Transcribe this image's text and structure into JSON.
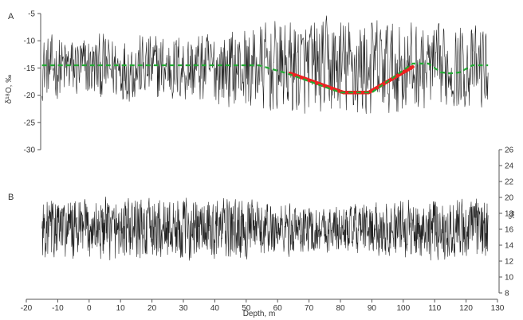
{
  "chart_data": [
    {
      "panel_label": "A",
      "type": "line",
      "ylabel": "δ¹⁸O, ‰",
      "xlim": [
        -20,
        130
      ],
      "ylim": [
        -30,
        -5
      ],
      "yticks": [
        -5,
        -10,
        -15,
        -20,
        -25,
        -30
      ],
      "y_axis_side": "left",
      "x_range_of_record": [
        -15,
        127
      ],
      "series": [
        {
          "kind": "noisy-record",
          "color": "#222222",
          "x_start": -15,
          "x_end": 127,
          "mean": -15,
          "amplitude_envelope": [
            [
              -15,
              6
            ],
            [
              40,
              7
            ],
            [
              60,
              9
            ],
            [
              90,
              10
            ],
            [
              110,
              8
            ],
            [
              127,
              8
            ]
          ]
        },
        {
          "kind": "trend-line-dashed",
          "color": "#22aa33",
          "x": [
            -15,
            54,
            63,
            80,
            90,
            103,
            108,
            112,
            115,
            118,
            122,
            127
          ],
          "y": [
            -14.5,
            -14.5,
            -16,
            -19.5,
            -19.5,
            -14.2,
            -14.2,
            -15.8,
            -16,
            -15.8,
            -14.5,
            -14.5
          ]
        },
        {
          "kind": "trend-line-highlight",
          "color": "#ee2222",
          "x": [
            64,
            81,
            89,
            103
          ],
          "y": [
            -16,
            -19.5,
            -19.5,
            -14.8
          ]
        }
      ]
    },
    {
      "panel_label": "B",
      "type": "line",
      "ylabel": "‰",
      "xlabel": "Depth, m",
      "xlim": [
        -20,
        130
      ],
      "xticks": [
        -20,
        -10,
        0,
        10,
        20,
        30,
        40,
        50,
        60,
        70,
        80,
        90,
        100,
        110,
        120,
        130
      ],
      "ylim": [
        8,
        26
      ],
      "yticks": [
        8,
        10,
        12,
        14,
        16,
        18,
        20,
        22,
        24,
        26
      ],
      "y_axis_side": "right",
      "series": [
        {
          "kind": "noisy-record",
          "color": "#222222",
          "x_start": -15,
          "x_end": 127,
          "mean": 16,
          "amplitude_envelope": [
            [
              -15,
              4
            ],
            [
              40,
              4
            ],
            [
              80,
              3
            ],
            [
              110,
              4
            ],
            [
              127,
              4
            ]
          ]
        }
      ]
    }
  ]
}
